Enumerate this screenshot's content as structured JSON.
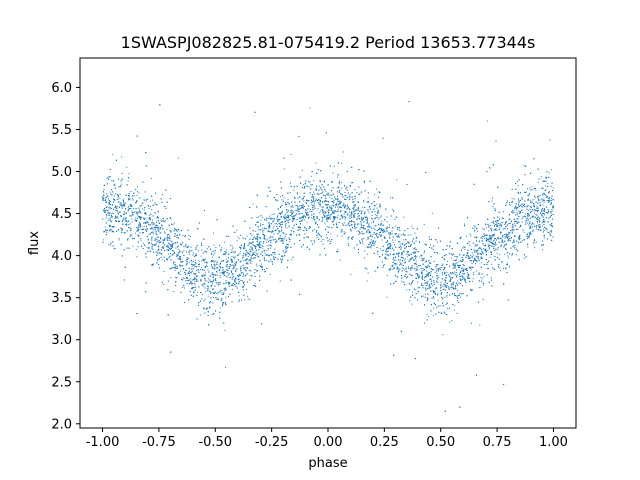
{
  "chart_data": {
    "type": "scatter",
    "title": "1SWASPJ082825.81-075419.2 Period 13653.77344s",
    "xlabel": "phase",
    "ylabel": "flux",
    "xlim": [
      -1.1,
      1.1
    ],
    "ylim": [
      1.95,
      6.35
    ],
    "xticks": [
      "-1.00",
      "-0.75",
      "-0.50",
      "-0.25",
      "0.00",
      "0.25",
      "0.50",
      "0.75",
      "1.00"
    ],
    "xtick_values": [
      -1.0,
      -0.75,
      -0.5,
      -0.25,
      0.0,
      0.25,
      0.5,
      0.75,
      1.0
    ],
    "yticks": [
      "2.0",
      "2.5",
      "3.0",
      "3.5",
      "4.0",
      "4.5",
      "5.0",
      "5.5",
      "6.0"
    ],
    "ytick_values": [
      2.0,
      2.5,
      3.0,
      3.5,
      4.0,
      4.5,
      5.0,
      5.5,
      6.0
    ],
    "grid": false,
    "legend": "none",
    "point_color": "#1f77b4",
    "series": [
      {
        "x": [
          -1.0,
          -0.95,
          -0.9,
          -0.85,
          -0.8,
          -0.75,
          -0.7,
          -0.65,
          -0.6,
          -0.55,
          -0.5,
          -0.45,
          -0.4,
          -0.35,
          -0.3,
          -0.25,
          -0.2,
          -0.15,
          -0.1,
          -0.05,
          0.0,
          0.05,
          0.1,
          0.15,
          0.2,
          0.25,
          0.3,
          0.35,
          0.4,
          0.45,
          0.5,
          0.55,
          0.6,
          0.65,
          0.7,
          0.75,
          0.8,
          0.85,
          0.9,
          0.95,
          1.0
        ],
        "y": [
          4.55,
          4.55,
          4.5,
          4.42,
          4.35,
          4.25,
          4.12,
          3.98,
          3.85,
          3.75,
          3.72,
          3.75,
          3.85,
          3.98,
          4.12,
          4.25,
          4.35,
          4.45,
          4.52,
          4.56,
          4.58,
          4.55,
          4.5,
          4.42,
          4.32,
          4.2,
          4.08,
          3.95,
          3.82,
          3.75,
          3.72,
          3.75,
          3.85,
          3.98,
          4.1,
          4.22,
          4.32,
          4.4,
          4.48,
          4.52,
          4.55
        ],
        "scatter_sd": 0.2
      }
    ]
  }
}
